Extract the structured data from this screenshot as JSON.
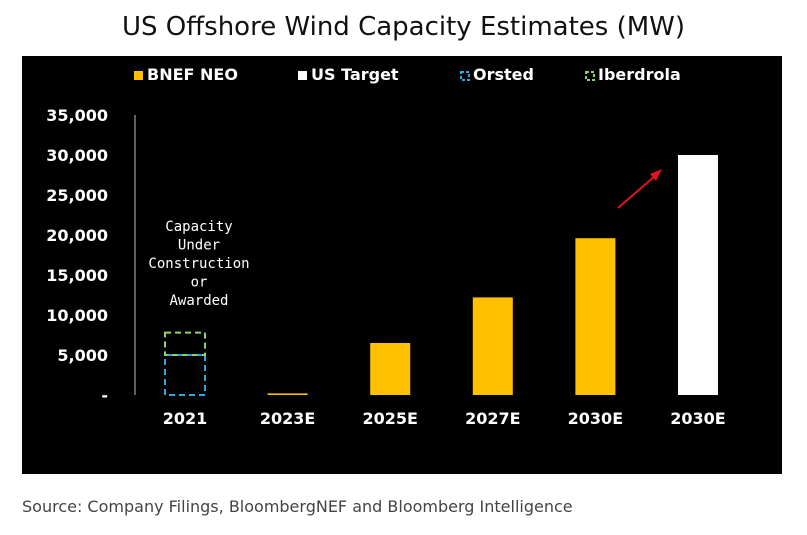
{
  "title": "US Offshore Wind Capacity Estimates (MW)",
  "source": "Source: Company Filings, BloombergNEF and Bloomberg Intelligence",
  "colors": {
    "background": "#000000",
    "bnef": "#ffc000",
    "us_target": "#ffffff",
    "orsted": "#2aa8e0",
    "iberdrola": "#8fd36a",
    "annotation_arrow": "#e0161c",
    "text": "#ffffff"
  },
  "chart_data": {
    "type": "bar",
    "title": "US Offshore Wind Capacity Estimates (MW)",
    "xlabel": "",
    "ylabel": "",
    "ylim": [
      0,
      35000
    ],
    "y_ticks": [
      0,
      5000,
      10000,
      15000,
      20000,
      25000,
      30000,
      35000
    ],
    "y_tick_labels": [
      "-",
      "5,000",
      "10,000",
      "15,000",
      "20,000",
      "25,000",
      "30,000",
      "35,000"
    ],
    "categories": [
      "2021",
      "2023E",
      "2025E",
      "2027E",
      "2030E",
      "2030E"
    ],
    "legend": [
      {
        "name": "BNEF NEO",
        "style": "solid",
        "color": "#ffc000"
      },
      {
        "name": "US Target",
        "style": "solid",
        "color": "#ffffff"
      },
      {
        "name": "Orsted",
        "style": "dashed",
        "color": "#2aa8e0"
      },
      {
        "name": "Iberdrola",
        "style": "dashed",
        "color": "#8fd36a"
      }
    ],
    "legend_position": "top",
    "series": [
      {
        "name": "BNEF NEO",
        "values": [
          0,
          200,
          6500,
          12200,
          19600,
          null
        ]
      },
      {
        "name": "US Target",
        "values": [
          null,
          null,
          null,
          null,
          null,
          30000
        ]
      },
      {
        "name": "Orsted",
        "values": [
          5000,
          null,
          null,
          null,
          null,
          null
        ]
      },
      {
        "name": "Iberdrola",
        "values": [
          2800,
          null,
          null,
          null,
          null,
          null
        ]
      }
    ],
    "annotation": "Capacity Under Construction or Awarded",
    "annotation_lines": [
      "Capacity",
      "Under",
      "Construction",
      "or",
      "Awarded"
    ],
    "grid": false
  }
}
